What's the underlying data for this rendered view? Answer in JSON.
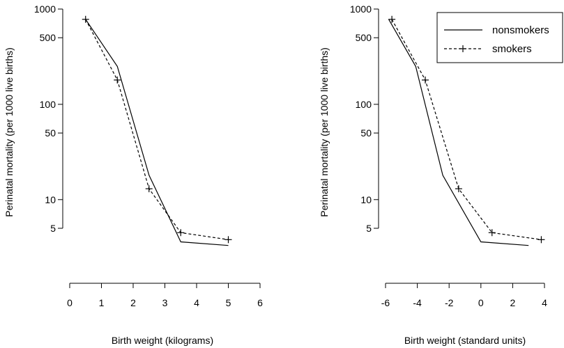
{
  "chart_data": [
    {
      "type": "line",
      "xlabel": "Birth weight  (kilograms)",
      "ylabel": "Perinatal mortality (per 1000 live births)",
      "yscale": "log",
      "xlim": [
        0,
        6
      ],
      "ylim": [
        1,
        1000
      ],
      "xticks": [
        "0",
        "1",
        "2",
        "3",
        "4",
        "5",
        "6"
      ],
      "yticks": [
        "5",
        "10",
        "50",
        "100",
        "500",
        "1000"
      ],
      "grid": false,
      "legend": "none",
      "series": [
        {
          "name": "nonsmokers",
          "line": "solid",
          "marker": "none",
          "x": [
            0.5,
            1.5,
            2.5,
            3.5,
            5.0
          ],
          "y": [
            780,
            250,
            18,
            3.6,
            3.3
          ]
        },
        {
          "name": "smokers",
          "line": "dashed",
          "marker": "plus",
          "x": [
            0.5,
            1.5,
            2.5,
            3.5,
            5.0
          ],
          "y": [
            780,
            180,
            13,
            4.5,
            3.8
          ]
        }
      ]
    },
    {
      "type": "line",
      "xlabel": "Birth weight  (standard units)",
      "ylabel": "Perinatal mortality (per 1000 live births)",
      "yscale": "log",
      "xlim": [
        -6,
        4
      ],
      "ylim": [
        1,
        1000
      ],
      "xticks": [
        "-6",
        "-4",
        "-2",
        "0",
        "2",
        "4"
      ],
      "yticks": [
        "5",
        "10",
        "50",
        "100",
        "500",
        "1000"
      ],
      "grid": false,
      "legend": "top-right",
      "series": [
        {
          "name": "nonsmokers",
          "line": "solid",
          "marker": "none",
          "x": [
            -5.8,
            -4.1,
            -2.4,
            0.0,
            3.0
          ],
          "y": [
            780,
            250,
            18,
            3.6,
            3.3
          ]
        },
        {
          "name": "smokers",
          "line": "dashed",
          "marker": "plus",
          "x": [
            -5.6,
            -3.5,
            -1.4,
            0.7,
            3.8
          ],
          "y": [
            780,
            180,
            13,
            4.5,
            3.8
          ]
        }
      ]
    }
  ]
}
